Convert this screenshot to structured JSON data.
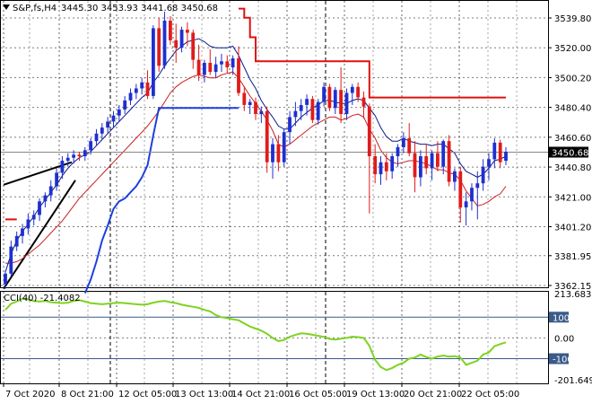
{
  "header": {
    "symbol_line": "S&P,fs,H4",
    "ohlc": "3445.30 3453.93 3441.68 3450.68"
  },
  "cci_header": {
    "label": "CCI(40) -21.4082"
  },
  "colors": {
    "bull_candle": "#1e2fd0",
    "bear_candle": "#e01b1b",
    "price_ma": "#0a1a8a",
    "slow_ma": "#cc1f1f",
    "blue_stop": "#1d3fe0",
    "red_stop": "#dd1111",
    "trendline": "#000000",
    "cci_line": "#7ed321",
    "grid": "#000000",
    "level_line": "#3a5a8a",
    "price_badge_bg": "#000000",
    "price_badge_fg": "#ffffff",
    "current_price_line": "#888888"
  },
  "chart_data": [
    {
      "type": "candlestick",
      "title": "S&P,fs,H4",
      "ohlc_last": {
        "open": 3445.3,
        "high": 3453.93,
        "low": 3441.68,
        "close": 3450.68
      },
      "current_price": "3450.68",
      "ylim": [
        3362.15,
        3549.0
      ],
      "y_ticks": [
        "3539.80",
        "3520.00",
        "3500.20",
        "3480.40",
        "3460.60",
        "3440.80",
        "3421.00",
        "3401.20",
        "3381.95",
        "3362.15"
      ],
      "x_ticks": [
        "7 Oct 2020",
        "8 Oct 21:00",
        "12 Oct 05:00",
        "13 Oct 13:00",
        "14 Oct 21:00",
        "16 Oct 05:00",
        "19 Oct 13:00",
        "20 Oct 21:00",
        "22 Oct 05:00"
      ],
      "candles": [
        [
          3363,
          3372,
          3360,
          3370
        ],
        [
          3370,
          3392,
          3368,
          3388
        ],
        [
          3388,
          3398,
          3385,
          3395
        ],
        [
          3395,
          3403,
          3390,
          3400
        ],
        [
          3400,
          3410,
          3396,
          3406
        ],
        [
          3406,
          3412,
          3402,
          3409
        ],
        [
          3409,
          3420,
          3405,
          3418
        ],
        [
          3418,
          3424,
          3414,
          3422
        ],
        [
          3422,
          3432,
          3418,
          3428
        ],
        [
          3428,
          3440,
          3425,
          3437
        ],
        [
          3437,
          3448,
          3433,
          3445
        ],
        [
          3445,
          3450,
          3441,
          3447
        ],
        [
          3447,
          3452,
          3443,
          3449
        ],
        [
          3449,
          3451,
          3445,
          3448
        ],
        [
          3448,
          3454,
          3445,
          3452
        ],
        [
          3452,
          3460,
          3449,
          3458
        ],
        [
          3458,
          3466,
          3455,
          3463
        ],
        [
          3463,
          3470,
          3459,
          3467
        ],
        [
          3467,
          3474,
          3463,
          3471
        ],
        [
          3471,
          3478,
          3467,
          3475
        ],
        [
          3475,
          3482,
          3471,
          3479
        ],
        [
          3479,
          3488,
          3476,
          3485
        ],
        [
          3485,
          3493,
          3482,
          3490
        ],
        [
          3490,
          3496,
          3486,
          3493
        ],
        [
          3493,
          3500,
          3489,
          3497
        ],
        [
          3497,
          3505,
          3486,
          3488
        ],
        [
          3488,
          3535,
          3486,
          3533
        ],
        [
          3533,
          3540,
          3504,
          3508
        ],
        [
          3508,
          3544,
          3506,
          3538
        ],
        [
          3538,
          3541,
          3522,
          3525
        ],
        [
          3525,
          3536,
          3510,
          3520
        ],
        [
          3520,
          3534,
          3517,
          3532
        ],
        [
          3532,
          3537,
          3521,
          3530
        ],
        [
          3530,
          3532,
          3506,
          3512
        ],
        [
          3512,
          3522,
          3498,
          3502
        ],
        [
          3502,
          3512,
          3497,
          3510
        ],
        [
          3510,
          3519,
          3502,
          3504
        ],
        [
          3504,
          3514,
          3500,
          3509
        ],
        [
          3509,
          3516,
          3504,
          3511
        ],
        [
          3511,
          3515,
          3503,
          3507
        ],
        [
          3507,
          3515,
          3502,
          3513
        ],
        [
          3513,
          3521,
          3488,
          3490
        ],
        [
          3490,
          3494,
          3478,
          3482
        ],
        [
          3482,
          3486,
          3476,
          3484
        ],
        [
          3484,
          3487,
          3472,
          3476
        ],
        [
          3476,
          3481,
          3470,
          3478
        ],
        [
          3478,
          3481,
          3437,
          3444
        ],
        [
          3444,
          3460,
          3433,
          3456
        ],
        [
          3456,
          3462,
          3438,
          3444
        ],
        [
          3444,
          3466,
          3441,
          3464
        ],
        [
          3464,
          3478,
          3456,
          3474
        ],
        [
          3474,
          3484,
          3468,
          3478
        ],
        [
          3478,
          3486,
          3472,
          3482
        ],
        [
          3482,
          3489,
          3475,
          3486
        ],
        [
          3486,
          3488,
          3470,
          3472
        ],
        [
          3472,
          3486,
          3469,
          3484
        ],
        [
          3484,
          3497,
          3481,
          3494
        ],
        [
          3494,
          3496,
          3478,
          3480
        ],
        [
          3480,
          3494,
          3476,
          3492
        ],
        [
          3492,
          3507,
          3470,
          3476
        ],
        [
          3476,
          3493,
          3472,
          3490
        ],
        [
          3490,
          3496,
          3482,
          3494
        ],
        [
          3494,
          3497,
          3484,
          3487
        ],
        [
          3487,
          3491,
          3473,
          3481
        ],
        [
          3481,
          3483,
          3410,
          3448
        ],
        [
          3448,
          3456,
          3430,
          3436
        ],
        [
          3436,
          3448,
          3429,
          3444
        ],
        [
          3444,
          3450,
          3432,
          3438
        ],
        [
          3438,
          3450,
          3433,
          3448
        ],
        [
          3448,
          3456,
          3441,
          3454
        ],
        [
          3454,
          3464,
          3450,
          3460
        ],
        [
          3460,
          3470,
          3448,
          3450
        ],
        [
          3450,
          3458,
          3424,
          3434
        ],
        [
          3434,
          3452,
          3428,
          3448
        ],
        [
          3448,
          3456,
          3436,
          3440
        ],
        [
          3440,
          3452,
          3432,
          3450
        ],
        [
          3450,
          3458,
          3438,
          3441
        ],
        [
          3441,
          3459,
          3436,
          3458
        ],
        [
          3458,
          3462,
          3428,
          3431
        ],
        [
          3431,
          3440,
          3425,
          3438
        ],
        [
          3438,
          3441,
          3404,
          3414
        ],
        [
          3414,
          3424,
          3402,
          3418
        ],
        [
          3418,
          3430,
          3412,
          3427
        ],
        [
          3427,
          3438,
          3406,
          3430
        ],
        [
          3430,
          3446,
          3425,
          3441
        ],
        [
          3441,
          3450,
          3432,
          3446
        ],
        [
          3446,
          3460,
          3440,
          3457
        ],
        [
          3457,
          3459,
          3440,
          3444
        ],
        [
          3445,
          3454,
          3442,
          3451
        ]
      ],
      "ma_fast": [
        3371,
        3383,
        3392,
        3398,
        3403,
        3408,
        3414,
        3419,
        3424,
        3429,
        3435,
        3440,
        3444,
        3447,
        3449,
        3451,
        3455,
        3459,
        3463,
        3467,
        3471,
        3475,
        3479,
        3483,
        3487,
        3490,
        3497,
        3502,
        3508,
        3513,
        3518,
        3521,
        3524,
        3525,
        3526,
        3524,
        3521,
        3520,
        3520,
        3520,
        3521,
        3515,
        3507,
        3499,
        3493,
        3485,
        3479,
        3474,
        3468,
        3466,
        3466,
        3470,
        3474,
        3477,
        3480,
        3482,
        3485,
        3485,
        3484,
        3483,
        3483,
        3485,
        3486,
        3485,
        3480,
        3475,
        3467,
        3461,
        3458,
        3458,
        3460,
        3458,
        3457,
        3456,
        3456,
        3455,
        3456,
        3456,
        3453,
        3450,
        3443,
        3438,
        3436,
        3434,
        3436,
        3440,
        3445,
        3446,
        3448
      ],
      "ma_slow": [
        3377,
        3377,
        3378,
        3380,
        3383,
        3386,
        3389,
        3393,
        3397,
        3401,
        3405,
        3410,
        3415,
        3420,
        3424,
        3428,
        3432,
        3436,
        3440,
        3444,
        3448,
        3452,
        3456,
        3460,
        3464,
        3468,
        3473,
        3478,
        3484,
        3490,
        3494,
        3497,
        3499,
        3501,
        3502,
        3501,
        3500,
        3500,
        3502,
        3503,
        3504,
        3500,
        3494,
        3488,
        3483,
        3478,
        3472,
        3465,
        3456,
        3454,
        3456,
        3459,
        3462,
        3465,
        3468,
        3470,
        3472,
        3474,
        3474,
        3472,
        3473,
        3475,
        3476,
        3474,
        3466,
        3460,
        3452,
        3447,
        3444,
        3443,
        3444,
        3445,
        3445,
        3444,
        3443,
        3441,
        3439,
        3439,
        3437,
        3436,
        3432,
        3425,
        3420,
        3415,
        3416,
        3418,
        3421,
        3423,
        3428
      ],
      "blue_stop": [
        null,
        null,
        null,
        null,
        null,
        null,
        null,
        null,
        null,
        null,
        null,
        null,
        null,
        null,
        3357,
        3366,
        3378,
        3392,
        3402,
        3413,
        3418,
        3420,
        3424,
        3428,
        3434,
        3442,
        3462,
        3480,
        3480,
        3480,
        3480,
        3480,
        3480,
        3480,
        3480,
        3480,
        3480,
        3480,
        3480,
        3480,
        3480,
        3480,
        null,
        null,
        null,
        null,
        null,
        null,
        null,
        null,
        null,
        null,
        null,
        null,
        null,
        null,
        null,
        null,
        null,
        null,
        null,
        null,
        null,
        null,
        null,
        null,
        null,
        null,
        null,
        null,
        null,
        null,
        null,
        null,
        null,
        null,
        null,
        null,
        null,
        null,
        null,
        null,
        null,
        null,
        null,
        null,
        null,
        null,
        null
      ],
      "red_stop": [
        3406,
        3406,
        3406,
        null,
        null,
        null,
        null,
        null,
        null,
        null,
        null,
        null,
        null,
        null,
        null,
        null,
        null,
        null,
        null,
        null,
        null,
        null,
        null,
        null,
        null,
        null,
        null,
        null,
        null,
        null,
        null,
        null,
        null,
        null,
        null,
        null,
        null,
        null,
        null,
        null,
        null,
        3546,
        3540,
        3527,
        3511,
        3511,
        3511,
        3511,
        3511,
        3511,
        3511,
        3511,
        3511,
        3511,
        3511,
        3511,
        3511,
        3511,
        3511,
        3511,
        3511,
        3511,
        3511,
        3511,
        3487,
        3487,
        3487,
        3487,
        3487,
        3487,
        3487,
        3487,
        3487,
        3487,
        3487,
        3487,
        3487,
        3487,
        3487,
        3487,
        3487,
        3487,
        3487,
        3487,
        3487,
        3487,
        3487,
        3487,
        3487
      ]
    },
    {
      "type": "line",
      "title": "CCI(40) -21.4082",
      "ylim": [
        -201.649,
        213.6837
      ],
      "y_ticks": [
        "213.6837",
        "100",
        "0.00",
        "-100",
        "-201.649"
      ],
      "levels": [
        100,
        -100
      ],
      "x_ticks": [
        "7 Oct 2020",
        "8 Oct 21:00",
        "12 Oct 05:00",
        "13 Oct 13:00",
        "14 Oct 21:00",
        "16 Oct 05:00",
        "19 Oct 13:00",
        "20 Oct 21:00",
        "22 Oct 05:00"
      ],
      "series": [
        {
          "values": [
            135,
            165,
            175,
            190,
            185,
            178,
            175,
            178,
            172,
            170,
            168,
            170,
            178,
            182,
            175,
            168,
            165,
            162,
            165,
            168,
            170,
            168,
            165,
            162,
            160,
            162,
            170,
            175,
            178,
            172,
            168,
            160,
            155,
            150,
            145,
            135,
            128,
            110,
            100,
            95,
            90,
            85,
            70,
            55,
            45,
            35,
            20,
            0,
            -15,
            -10,
            5,
            15,
            22,
            20,
            15,
            10,
            5,
            -5,
            -8,
            -4,
            0,
            6,
            4,
            0,
            -38,
            -105,
            -140,
            -155,
            -145,
            -130,
            -120,
            -100,
            -95,
            -80,
            -92,
            -100,
            -90,
            -85,
            -90,
            -88,
            -95,
            -130,
            -120,
            -110,
            -80,
            -70,
            -40,
            -30,
            -21.4
          ]
        }
      ]
    }
  ]
}
